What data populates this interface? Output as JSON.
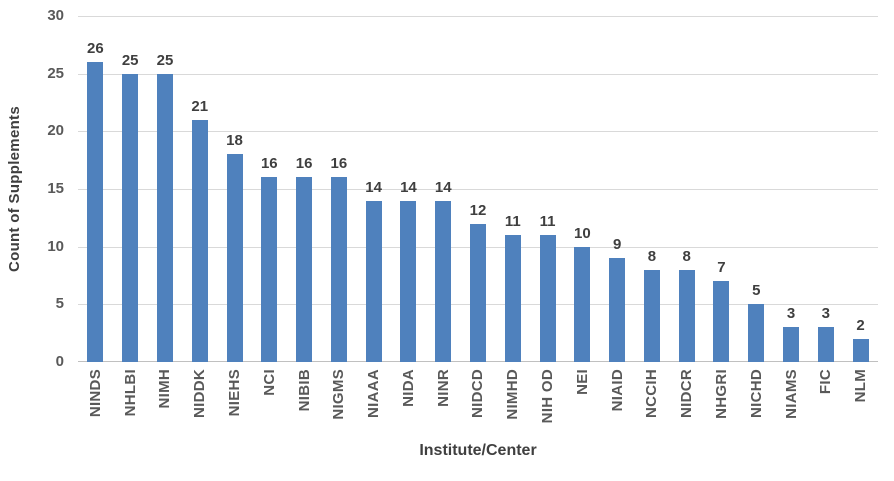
{
  "chart_data": {
    "type": "bar",
    "title": "",
    "xlabel": "Institute/Center",
    "ylabel": "Count of Supplements",
    "categories": [
      "NINDS",
      "NHLBI",
      "NIMH",
      "NIDDK",
      "NIEHS",
      "NCI",
      "NIBIB",
      "NIGMS",
      "NIAAA",
      "NIDA",
      "NINR",
      "NIDCD",
      "NIMHD",
      "NIH OD",
      "NEI",
      "NIAID",
      "NCCIH",
      "NIDCR",
      "NHGRI",
      "NICHD",
      "NIAMS",
      "FIC",
      "NLM"
    ],
    "values": [
      26,
      25,
      25,
      21,
      18,
      16,
      16,
      16,
      14,
      14,
      14,
      12,
      11,
      11,
      10,
      9,
      8,
      8,
      7,
      5,
      3,
      3,
      2
    ],
    "ylim": [
      0,
      30
    ],
    "yticks": [
      0,
      5,
      10,
      15,
      20,
      25,
      30
    ],
    "grid": true,
    "legend": "none",
    "data_labels": true,
    "bar_color": "#4f81bd",
    "gridline_color": "#d9d9d9",
    "axis_line_color": "#c0c0c0",
    "label_color": "#3f3f3f",
    "tick_color": "#595959"
  }
}
